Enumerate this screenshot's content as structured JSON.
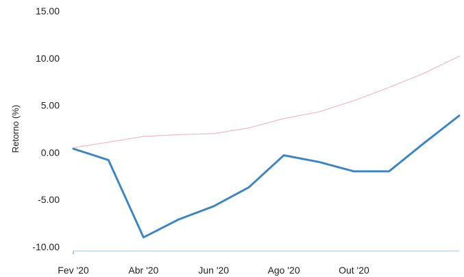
{
  "chart_data": {
    "type": "line",
    "title": "",
    "xlabel": "",
    "ylabel": "Retorno (%)",
    "ylim": [
      -10,
      15
    ],
    "yticks": [
      "15.00",
      "10.00",
      "5.00",
      "0.00",
      "-5.00",
      "-10.00"
    ],
    "ytick_values": [
      15,
      10,
      5,
      0,
      -5,
      -10
    ],
    "xticks": [
      "Fev '20",
      "Abr '20",
      "Jun '20",
      "Ago '20",
      "Out '20"
    ],
    "xtick_indices": [
      0,
      2,
      4,
      6,
      8
    ],
    "x_index": [
      0,
      1,
      2,
      3,
      4,
      5,
      6,
      7,
      8,
      9,
      10,
      11
    ],
    "grid": false,
    "legend": "none",
    "series": [
      {
        "color": "#f4b8c2",
        "values": [
          0.5,
          1.1,
          1.7,
          1.9,
          2.0,
          2.6,
          3.6,
          4.3,
          5.5,
          6.9,
          8.4,
          10.2
        ]
      },
      {
        "color": "#3d86c6",
        "values": [
          0.4,
          -0.8,
          -9.0,
          -7.1,
          -5.7,
          -3.7,
          -0.3,
          -1.0,
          -2.0,
          -2.0,
          1.0,
          3.9
        ]
      }
    ],
    "baseline_color": "#9ec9e8"
  }
}
